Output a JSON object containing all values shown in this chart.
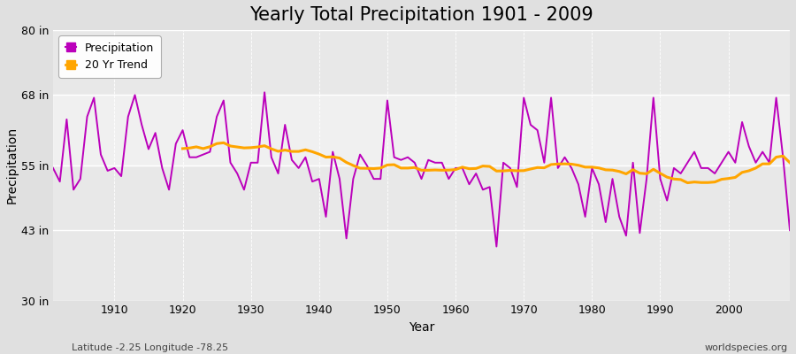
{
  "title": "Yearly Total Precipitation 1901 - 2009",
  "xlabel": "Year",
  "ylabel": "Precipitation",
  "footnote_left": "Latitude -2.25 Longitude -78.25",
  "footnote_right": "worldspecies.org",
  "ylim": [
    30,
    80
  ],
  "yticks": [
    30,
    43,
    55,
    68,
    80
  ],
  "ytick_labels": [
    "30 in",
    "43 in",
    "55 in",
    "68 in",
    "80 in"
  ],
  "xlim": [
    1901,
    2009
  ],
  "xticks": [
    1910,
    1920,
    1930,
    1940,
    1950,
    1960,
    1970,
    1980,
    1990,
    2000
  ],
  "background_color": "#e0e0e0",
  "plot_bg_color": "#e8e8e8",
  "band_color": "#d8d8d8",
  "precip_color": "#bb00bb",
  "trend_color": "#ffa500",
  "years": [
    1901,
    1902,
    1903,
    1904,
    1905,
    1906,
    1907,
    1908,
    1909,
    1910,
    1911,
    1912,
    1913,
    1914,
    1915,
    1916,
    1917,
    1918,
    1919,
    1920,
    1921,
    1922,
    1923,
    1924,
    1925,
    1926,
    1927,
    1928,
    1929,
    1930,
    1931,
    1932,
    1933,
    1934,
    1935,
    1936,
    1937,
    1938,
    1939,
    1940,
    1941,
    1942,
    1943,
    1944,
    1945,
    1946,
    1947,
    1948,
    1949,
    1950,
    1951,
    1952,
    1953,
    1954,
    1955,
    1956,
    1957,
    1958,
    1959,
    1960,
    1961,
    1962,
    1963,
    1964,
    1965,
    1966,
    1967,
    1968,
    1969,
    1970,
    1971,
    1972,
    1973,
    1974,
    1975,
    1976,
    1977,
    1978,
    1979,
    1980,
    1981,
    1982,
    1983,
    1984,
    1985,
    1986,
    1987,
    1988,
    1989,
    1990,
    1991,
    1992,
    1993,
    1994,
    1995,
    1996,
    1997,
    1998,
    1999,
    2000,
    2001,
    2002,
    2003,
    2004,
    2005,
    2006,
    2007,
    2008,
    2009
  ],
  "precip": [
    54.5,
    52.0,
    63.5,
    50.5,
    52.5,
    64.0,
    67.5,
    57.0,
    54.0,
    54.5,
    53.0,
    64.0,
    68.0,
    62.5,
    58.0,
    61.0,
    54.5,
    50.5,
    59.0,
    61.5,
    56.5,
    56.5,
    57.0,
    57.5,
    64.0,
    67.0,
    55.5,
    53.5,
    50.5,
    55.5,
    55.5,
    68.5,
    56.5,
    53.5,
    62.5,
    56.0,
    54.5,
    56.5,
    52.0,
    52.5,
    45.5,
    57.5,
    52.5,
    41.5,
    52.5,
    57.0,
    55.0,
    52.5,
    52.5,
    67.0,
    56.5,
    56.0,
    56.5,
    55.5,
    52.5,
    56.0,
    55.5,
    55.5,
    52.5,
    54.5,
    54.5,
    51.5,
    53.5,
    50.5,
    51.0,
    40.0,
    55.5,
    54.5,
    51.0,
    67.5,
    62.5,
    61.5,
    55.5,
    67.5,
    54.5,
    56.5,
    54.5,
    51.5,
    45.5,
    54.5,
    51.5,
    44.5,
    52.5,
    45.5,
    42.0,
    55.5,
    42.5,
    52.5,
    67.5,
    52.5,
    48.5,
    54.5,
    53.5,
    55.5,
    57.5,
    54.5,
    54.5,
    53.5,
    55.5,
    57.5,
    55.5,
    63.0,
    58.5,
    55.5,
    57.5,
    55.5,
    67.5,
    56.5,
    43.0
  ],
  "title_fontsize": 15,
  "axis_label_fontsize": 10,
  "tick_fontsize": 9,
  "footnote_fontsize": 8,
  "legend_fontsize": 9
}
